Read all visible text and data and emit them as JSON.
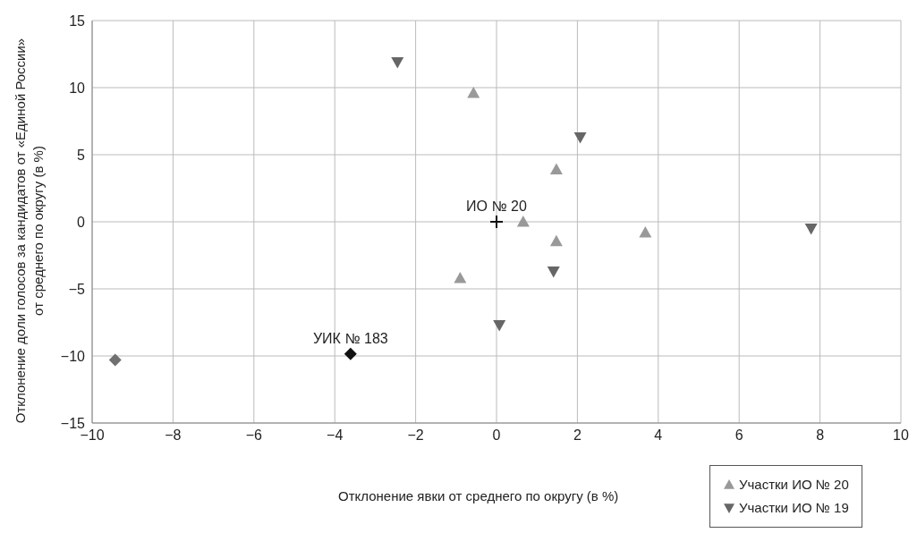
{
  "chart_data": {
    "type": "scatter",
    "xlabel": "Отклонение явки от среднего по округу (в %)",
    "ylabel": "Отклонение доли голосов за кандидатов от «Единой России»\nот среднего по округу (в %)",
    "xlim": [
      -10,
      10
    ],
    "xticks": [
      -10,
      -8,
      -6,
      -4,
      -2,
      0,
      2,
      4,
      6,
      8,
      10
    ],
    "ylim": [
      -15,
      15
    ],
    "yticks": [
      -15,
      -10,
      -5,
      0,
      5,
      10,
      15
    ],
    "grid": true,
    "legend": "bottom right",
    "series": [
      {
        "name": "Участки ИО № 20",
        "color": "#999999",
        "marker": "triangle",
        "x": [
          -0.57,
          1.48,
          0.66,
          1.48,
          3.68,
          -0.9
        ],
        "values": [
          9.6,
          3.9,
          0,
          -1.45,
          -0.8,
          -4.2
        ]
      },
      {
        "name": "Участки ИО № 19",
        "color": "#666666",
        "marker": "triangle-down",
        "x": [
          -2.45,
          2.07,
          1.41,
          0.07,
          7.78
        ],
        "values": [
          11.9,
          6.3,
          -3.7,
          -7.7,
          -0.5
        ]
      },
      {
        "color": "#707070",
        "marker": "diamond",
        "x": [
          -9.43
        ],
        "values": [
          -10.3
        ]
      },
      {
        "color": "#111111",
        "marker": "diamond",
        "x": [
          -3.61
        ],
        "values": [
          -9.85
        ]
      },
      {
        "color": "#111111",
        "marker": "cross",
        "x": [
          0
        ],
        "values": [
          0
        ]
      }
    ],
    "annotations": [
      {
        "text": "ИО № 20",
        "x": 0,
        "y": 0
      },
      {
        "text": "УИК № 183",
        "x": -3.61,
        "y": -9.85
      }
    ]
  }
}
